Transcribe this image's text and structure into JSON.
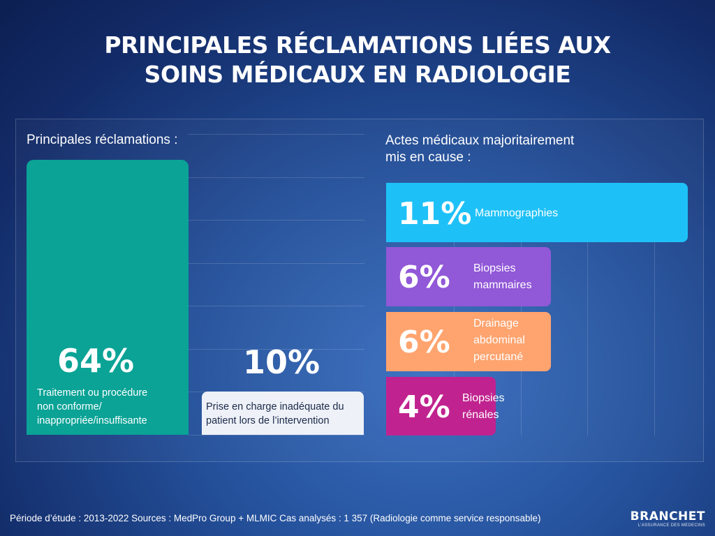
{
  "title_line1": "PRINCIPALES RÉCLAMATIONS LIÉES AUX",
  "title_line2": "SOINS MÉDICAUX EN RADIOLOGIE",
  "left_section_label": "Principales réclamations :",
  "right_section_label_line1": "Actes médicaux majoritairement",
  "right_section_label_line2": "mis en cause :",
  "colors": {
    "teal": "#0aa396",
    "light": "#eef1f7",
    "cyan": "#1ec1f7",
    "purple": "#9158d8",
    "orange": "#ffa46f",
    "magenta": "#c0238f"
  },
  "chart_data": [
    {
      "type": "bar",
      "title": "Principales réclamations :",
      "categories": [
        "Traitement ou procédure non conforme/ inappropriée/insuffisante",
        "Prise en charge inadéquate du patient lors de l’intervention"
      ],
      "values": [
        64,
        10
      ],
      "value_labels": [
        "64%",
        "10%"
      ],
      "desc_lines": [
        [
          "Traitement ou procédure",
          "non conforme/",
          "inappropriée/insuffisante"
        ],
        [
          "Prise en charge inadéquate du",
          "patient lors de l’intervention"
        ]
      ],
      "grid": true
    },
    {
      "type": "bar",
      "orientation": "horizontal",
      "title": "Actes médicaux majoritairement mis en cause :",
      "categories": [
        "Mammographies",
        "Biopsies mammaires",
        "Drainage abdominal percutané",
        "Biopsies rénales"
      ],
      "values": [
        11,
        6,
        6,
        4
      ],
      "value_labels": [
        "11%",
        "6%",
        "6%",
        "4%"
      ],
      "desc_lines": [
        [
          "Mammographies"
        ],
        [
          "Biopsies",
          "mammaires"
        ],
        [
          "Drainage",
          "abdominal",
          "percutané"
        ],
        [
          "Biopsies",
          "rénales"
        ]
      ],
      "grid": true
    }
  ],
  "footer": "Période d’étude : 2013-2022 Sources : MedPro Group + MLMIC Cas analysés : 1 357 (Radiologie comme service responsable)",
  "brand": {
    "name": "BRANCHET",
    "tagline": "L’ASSURANCE DES MÉDECINS"
  }
}
